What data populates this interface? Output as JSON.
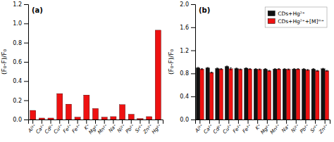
{
  "chart_data": [
    {
      "type": "bar",
      "title": "(a)",
      "ylabel": "(F₀-F)/F₀",
      "categories": [
        "Al³⁺",
        "Ca²⁺",
        "Cd²⁺",
        "Cu²⁺",
        "Fe²⁺",
        "Fe³⁺",
        "K⁺",
        "Mg²⁺",
        "Mn²⁺",
        "Na⁺",
        "Ni²⁺",
        "Pb²⁺",
        "Sr²⁺",
        "Zn²⁺",
        "Hg²⁺"
      ],
      "values": [
        0.095,
        0.015,
        0.015,
        0.27,
        0.16,
        0.025,
        0.255,
        0.115,
        0.025,
        0.03,
        0.155,
        0.055,
        0.01,
        0.03,
        0.93
      ],
      "color": "#EE1111",
      "ylim": [
        0,
        1.2
      ],
      "yticks": [
        {
          "value": 0,
          "label": "0.0"
        },
        0.2,
        0.4,
        0.6,
        0.8,
        {
          "value": 1,
          "label": "1.0"
        },
        1.2
      ]
    },
    {
      "type": "bar",
      "title": "(b)",
      "ylabel": "(F₀-F)/F₀",
      "categories": [
        "Al³⁺",
        "Ca²⁺",
        "Cd²⁺",
        "Cu²⁺",
        "Fe²⁺",
        "Fe³⁺",
        "K⁺",
        "Mg²⁺",
        "Mn²⁺",
        "Na⁺",
        "Ni²⁺",
        "Pb²⁺",
        "Sr²⁺",
        "Zn²⁺"
      ],
      "series": [
        {
          "name": "CDs+Hg²⁺",
          "color": "#111111",
          "values": [
            0.895,
            0.895,
            0.885,
            0.92,
            0.885,
            0.89,
            0.875,
            0.875,
            0.875,
            0.875,
            0.875,
            0.875,
            0.875,
            0.88
          ],
          "errors": [
            0.01,
            0.008,
            0.009,
            0.008,
            0.008,
            0.008,
            0.008,
            0.008,
            0.008,
            0.008,
            0.008,
            0.008,
            0.008,
            0.008
          ]
        },
        {
          "name": "CDs+Hg²⁺+[M]ᵐ⁺",
          "color": "#EE1111",
          "values": [
            0.875,
            0.815,
            0.875,
            0.88,
            0.87,
            0.875,
            0.87,
            0.845,
            0.875,
            0.87,
            0.875,
            0.86,
            0.845,
            0.845
          ],
          "errors": [
            0.01,
            0.008,
            0.009,
            0.018,
            0.008,
            0.008,
            0.008,
            0.008,
            0.008,
            0.008,
            0.008,
            0.008,
            0.008,
            0.008
          ]
        }
      ],
      "ylim": [
        0,
        2.0
      ],
      "yticks": [
        {
          "value": 0,
          "label": "0.0"
        },
        0.4,
        0.8,
        1.2,
        1.6,
        {
          "value": 2,
          "label": "2.0"
        }
      ],
      "legend": "upper right"
    }
  ]
}
